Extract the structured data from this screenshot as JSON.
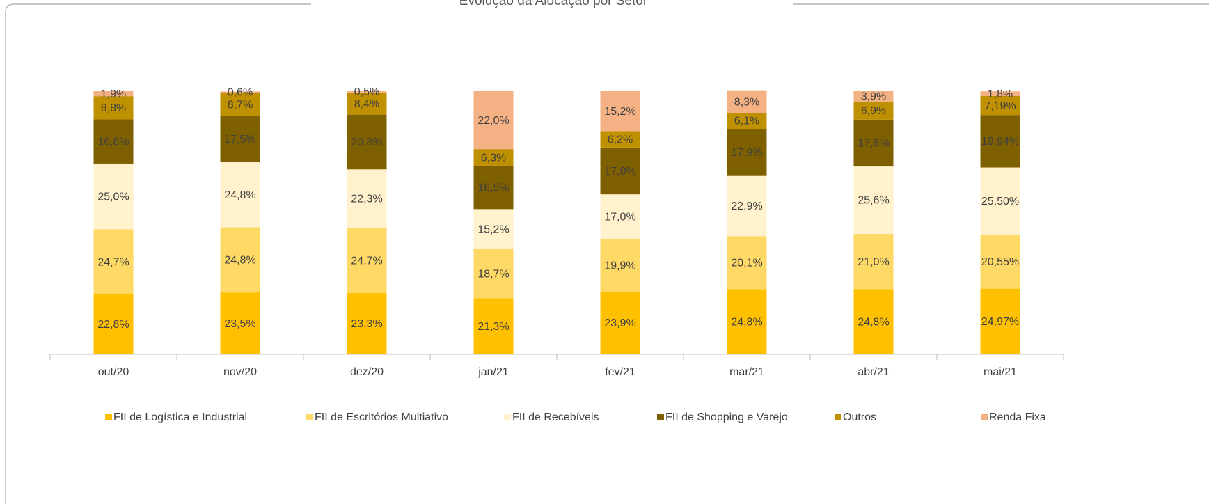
{
  "chart_data": {
    "type": "stacked_bar",
    "title": "Evolução da Alocação por Setor",
    "categories": [
      "out/20",
      "nov/20",
      "dez/20",
      "jan/21",
      "fev/21",
      "mar/21",
      "abr/21",
      "mai/21"
    ],
    "ylim": [
      0,
      100
    ],
    "series": [
      {
        "name": "FII de Logística e Industrial",
        "color": "#FFC000",
        "values": [
          22.8,
          23.5,
          23.3,
          21.3,
          23.9,
          24.8,
          24.8,
          24.97
        ],
        "value_labels": [
          "22,8%",
          "23,5%",
          "23,3%",
          "21,3%",
          "23,9%",
          "24,8%",
          "24,8%",
          "24,97%"
        ]
      },
      {
        "name": "FII de Escritórios Multiativo",
        "color": "#FFD966",
        "values": [
          24.7,
          24.8,
          24.7,
          18.7,
          19.9,
          20.1,
          21.0,
          20.55
        ],
        "value_labels": [
          "24,7%",
          "24,8%",
          "24,7%",
          "18,7%",
          "19,9%",
          "20,1%",
          "21,0%",
          "20,55%"
        ]
      },
      {
        "name": "FII de Recebíveis",
        "color": "#FFF2CC",
        "values": [
          25.0,
          24.8,
          22.3,
          15.2,
          17.0,
          22.9,
          25.6,
          25.5
        ],
        "value_labels": [
          "25,0%",
          "24,8%",
          "22,3%",
          "15,2%",
          "17,0%",
          "22,9%",
          "25,6%",
          "25,50%"
        ]
      },
      {
        "name": "FII de Shopping e Varejo",
        "color": "#7F6000",
        "values": [
          16.8,
          17.5,
          20.8,
          16.5,
          17.8,
          17.9,
          17.8,
          19.94
        ],
        "value_labels": [
          "16,8%",
          "17,5%",
          "20,8%",
          "16,5%",
          "17,8%",
          "17,9%",
          "17,8%",
          "19,94%"
        ]
      },
      {
        "name": "Outros",
        "color": "#BF9000",
        "values": [
          8.8,
          8.7,
          8.4,
          6.3,
          6.2,
          6.1,
          6.9,
          7.19
        ],
        "value_labels": [
          "8,8%",
          "8,7%",
          "8,4%",
          "6,3%",
          "6,2%",
          "6,1%",
          "6,9%",
          "7,19%"
        ]
      },
      {
        "name": "Renda Fixa",
        "color": "#F4B183",
        "values": [
          1.9,
          0.6,
          0.5,
          22.0,
          15.2,
          8.3,
          3.9,
          1.8
        ],
        "value_labels": [
          "1,9%",
          "0,6%",
          "0,5%",
          "22,0%",
          "15,2%",
          "8,3%",
          "3,9%",
          "1,8%"
        ]
      }
    ],
    "legend": "bottom"
  }
}
